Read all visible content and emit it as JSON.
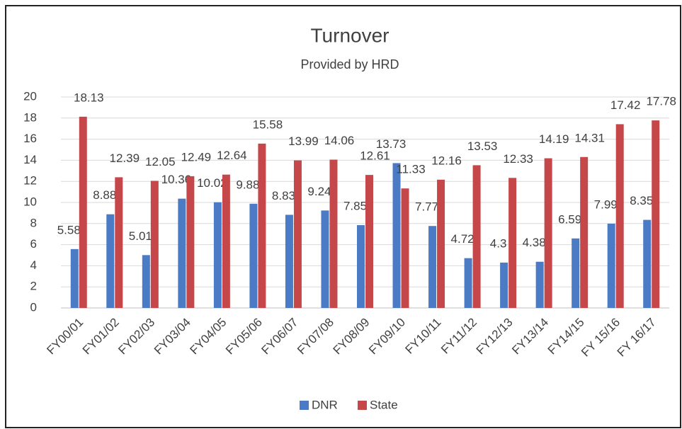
{
  "chart_data": {
    "type": "bar",
    "title": "Turnover",
    "subtitle": "Provided by HRD",
    "categories": [
      "FY00/01",
      "FY01/02",
      "FY02/03",
      "FY03/04",
      "FY04/05",
      "FY05/06",
      "FY06/07",
      "FY07/08",
      "FY08/09",
      "FY09/10",
      "FY10/11",
      "FY11/12",
      "FY12/13",
      "FY13/14",
      "FY14/15",
      "FY 15/16",
      "FY 16/17"
    ],
    "series": [
      {
        "name": "DNR",
        "color": "#4a7bc4",
        "values": [
          5.58,
          8.88,
          5.01,
          10.36,
          10.02,
          9.88,
          8.83,
          9.24,
          7.85,
          13.73,
          7.77,
          4.72,
          4.3,
          4.38,
          6.59,
          7.99,
          8.35
        ]
      },
      {
        "name": "State",
        "color": "#c5474a",
        "values": [
          18.13,
          12.39,
          12.05,
          12.49,
          12.64,
          15.58,
          13.99,
          14.06,
          12.61,
          11.33,
          12.16,
          13.53,
          12.33,
          14.19,
          14.31,
          17.42,
          17.78
        ]
      }
    ],
    "ylim": [
      0,
      20
    ],
    "yticks": [
      0,
      2,
      4,
      6,
      8,
      10,
      12,
      14,
      16,
      18,
      20
    ],
    "grid": true,
    "legend": "bottom"
  }
}
